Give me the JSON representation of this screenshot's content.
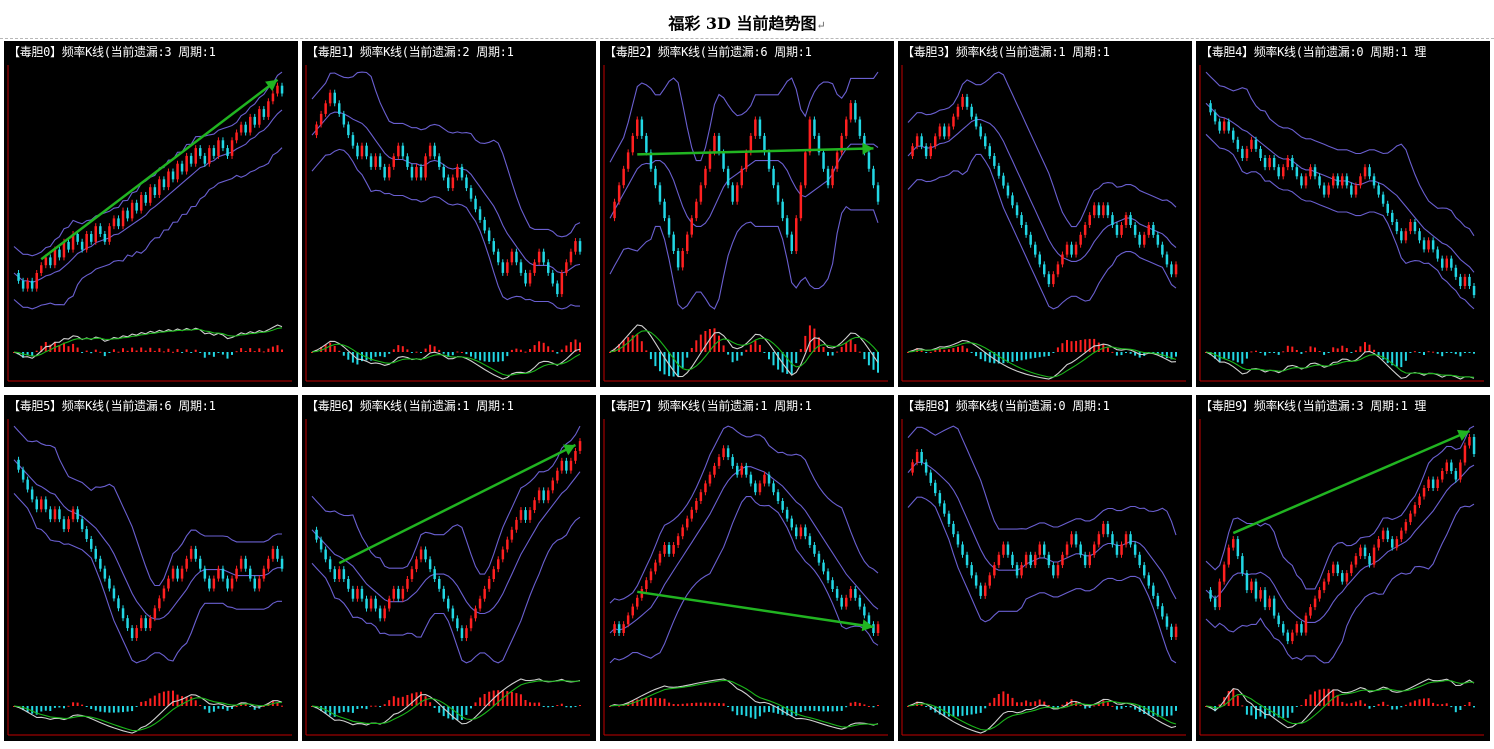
{
  "header": {
    "title": "福彩 3D 当前趋势图",
    "mark": "↵"
  },
  "colors": {
    "up": "#ff2020",
    "down": "#22d7e4",
    "band": "#6a5fd0",
    "arrow": "#21b421",
    "fast": "#d0d0d0",
    "slow": "#1bb51b",
    "axis": "#c00000"
  },
  "chart_data": [
    {
      "type": "candlestick",
      "title": "【毒胆0】频率K线(当前遗漏:3 周期:1",
      "trend_arrow": "up",
      "values": [
        2,
        1,
        0,
        1,
        0,
        2,
        3,
        4,
        3,
        5,
        4,
        6,
        5,
        7,
        6,
        5,
        7,
        6,
        8,
        7,
        6,
        8,
        9,
        8,
        10,
        9,
        11,
        10,
        12,
        11,
        13,
        12,
        14,
        13,
        15,
        14,
        16,
        15,
        17,
        16,
        18,
        17,
        16,
        18,
        17,
        19,
        18,
        17,
        19,
        20,
        21,
        20,
        22,
        21,
        23,
        22,
        24,
        25,
        26,
        25
      ]
    },
    {
      "type": "candlestick",
      "title": "【毒胆1】频率K线(当前遗漏:2 周期:1",
      "trend_arrow": "none",
      "values": [
        8,
        9,
        10,
        11,
        12,
        11,
        10,
        9,
        8,
        7,
        6,
        7,
        6,
        5,
        6,
        5,
        4,
        5,
        6,
        7,
        6,
        5,
        4,
        5,
        4,
        6,
        7,
        6,
        5,
        4,
        3,
        4,
        5,
        4,
        3,
        2,
        1,
        0,
        -1,
        -2,
        -3,
        -4,
        -5,
        -4,
        -3,
        -4,
        -5,
        -6,
        -5,
        -4,
        -3,
        -4,
        -5,
        -6,
        -7,
        -5,
        -4,
        -3,
        -2,
        -3
      ]
    },
    {
      "type": "candlestick",
      "title": "【毒胆2】频率K线(当前遗漏:6 周期:1",
      "trend_arrow": "flat",
      "values": [
        0,
        1,
        2,
        3,
        4,
        5,
        6,
        5,
        4,
        3,
        2,
        1,
        0,
        -1,
        -2,
        -3,
        -2,
        -1,
        0,
        1,
        2,
        3,
        4,
        5,
        4,
        3,
        2,
        1,
        2,
        3,
        4,
        5,
        6,
        5,
        4,
        3,
        2,
        1,
        0,
        -1,
        -2,
        0,
        2,
        4,
        6,
        5,
        4,
        3,
        2,
        3,
        4,
        5,
        6,
        7,
        6,
        5,
        4,
        3,
        2,
        1
      ]
    },
    {
      "type": "candlestick",
      "title": "【毒胆3】频率K线(当前遗漏:1 周期:1",
      "trend_arrow": "none",
      "values": [
        6,
        7,
        8,
        7,
        6,
        7,
        8,
        9,
        8,
        9,
        10,
        11,
        12,
        11,
        10,
        9,
        8,
        7,
        6,
        5,
        4,
        3,
        2,
        1,
        0,
        -1,
        -2,
        -3,
        -4,
        -5,
        -6,
        -7,
        -6,
        -5,
        -4,
        -3,
        -4,
        -3,
        -2,
        -1,
        0,
        1,
        0,
        1,
        0,
        -1,
        -2,
        -1,
        0,
        -1,
        -2,
        -3,
        -2,
        -1,
        -2,
        -3,
        -4,
        -5,
        -6,
        -5
      ]
    },
    {
      "type": "candlestick",
      "title": "【毒胆4】频率K线(当前遗漏:0 周期:1 理",
      "trend_arrow": "none",
      "values": [
        10,
        9,
        8,
        7,
        8,
        7,
        6,
        5,
        4,
        5,
        6,
        5,
        4,
        3,
        4,
        3,
        2,
        3,
        4,
        3,
        2,
        1,
        2,
        3,
        2,
        1,
        0,
        1,
        2,
        1,
        2,
        1,
        0,
        1,
        2,
        3,
        2,
        1,
        0,
        -1,
        -2,
        -3,
        -4,
        -5,
        -4,
        -3,
        -4,
        -5,
        -6,
        -5,
        -6,
        -7,
        -8,
        -7,
        -8,
        -9,
        -10,
        -9,
        -10,
        -11
      ]
    },
    {
      "type": "candlestick",
      "title": "【毒胆5】频率K线(当前遗漏:6 周期:1",
      "trend_arrow": "none",
      "values": [
        12,
        11,
        10,
        9,
        8,
        7,
        8,
        7,
        6,
        7,
        6,
        5,
        6,
        7,
        6,
        5,
        4,
        3,
        2,
        1,
        0,
        -1,
        -2,
        -3,
        -4,
        -5,
        -6,
        -5,
        -4,
        -5,
        -4,
        -3,
        -2,
        -1,
        0,
        1,
        0,
        1,
        2,
        3,
        2,
        1,
        0,
        -1,
        0,
        1,
        0,
        -1,
        0,
        1,
        2,
        1,
        0,
        -1,
        0,
        1,
        2,
        3,
        2,
        1
      ]
    },
    {
      "type": "candlestick",
      "title": "【毒胆6】频率K线(当前遗漏:1 周期:1",
      "trend_arrow": "up",
      "values": [
        6,
        5,
        4,
        3,
        2,
        1,
        2,
        1,
        0,
        -1,
        0,
        -1,
        -2,
        -1,
        -2,
        -3,
        -2,
        -1,
        0,
        -1,
        0,
        1,
        2,
        3,
        4,
        3,
        2,
        1,
        0,
        -1,
        -2,
        -3,
        -4,
        -5,
        -4,
        -3,
        -2,
        -1,
        0,
        1,
        2,
        3,
        4,
        5,
        6,
        7,
        8,
        7,
        8,
        9,
        10,
        9,
        10,
        11,
        12,
        13,
        12,
        13,
        14,
        15
      ]
    },
    {
      "type": "candlestick",
      "title": "【毒胆7】频率K线(当前遗漏:1 周期:1",
      "trend_arrow": "up",
      "values": [
        0,
        1,
        0,
        1,
        2,
        3,
        4,
        5,
        6,
        7,
        8,
        9,
        10,
        9,
        10,
        11,
        12,
        13,
        14,
        15,
        16,
        17,
        18,
        19,
        20,
        21,
        20,
        19,
        18,
        19,
        18,
        17,
        16,
        17,
        18,
        17,
        16,
        15,
        14,
        13,
        12,
        11,
        12,
        11,
        10,
        9,
        8,
        7,
        6,
        5,
        4,
        3,
        4,
        5,
        4,
        3,
        2,
        1,
        0,
        1
      ]
    },
    {
      "type": "candlestick",
      "title": "【毒胆8】频率K线(当前遗漏:0 周期:1",
      "trend_arrow": "none",
      "values": [
        8,
        9,
        10,
        9,
        8,
        7,
        6,
        5,
        4,
        3,
        2,
        1,
        0,
        -1,
        -2,
        -3,
        -4,
        -3,
        -2,
        -1,
        0,
        1,
        0,
        -1,
        -2,
        -1,
        0,
        -1,
        0,
        1,
        0,
        -1,
        -2,
        -1,
        0,
        1,
        2,
        1,
        0,
        -1,
        0,
        1,
        2,
        3,
        2,
        1,
        0,
        1,
        2,
        1,
        0,
        -1,
        -2,
        -3,
        -4,
        -5,
        -6,
        -7,
        -8,
        -7
      ]
    },
    {
      "type": "candlestick",
      "title": "【毒胆9】频率K线(当前遗漏:3 周期:1 理",
      "trend_arrow": "up",
      "values": [
        0,
        -1,
        -2,
        1,
        3,
        5,
        6,
        4,
        2,
        0,
        1,
        -1,
        0,
        -2,
        -1,
        -3,
        -4,
        -5,
        -6,
        -5,
        -4,
        -5,
        -3,
        -2,
        -1,
        0,
        1,
        2,
        3,
        2,
        1,
        2,
        3,
        4,
        5,
        4,
        3,
        5,
        6,
        7,
        6,
        5,
        6,
        7,
        8,
        9,
        10,
        11,
        12,
        13,
        12,
        13,
        14,
        15,
        14,
        13,
        15,
        17,
        18,
        16
      ]
    }
  ]
}
